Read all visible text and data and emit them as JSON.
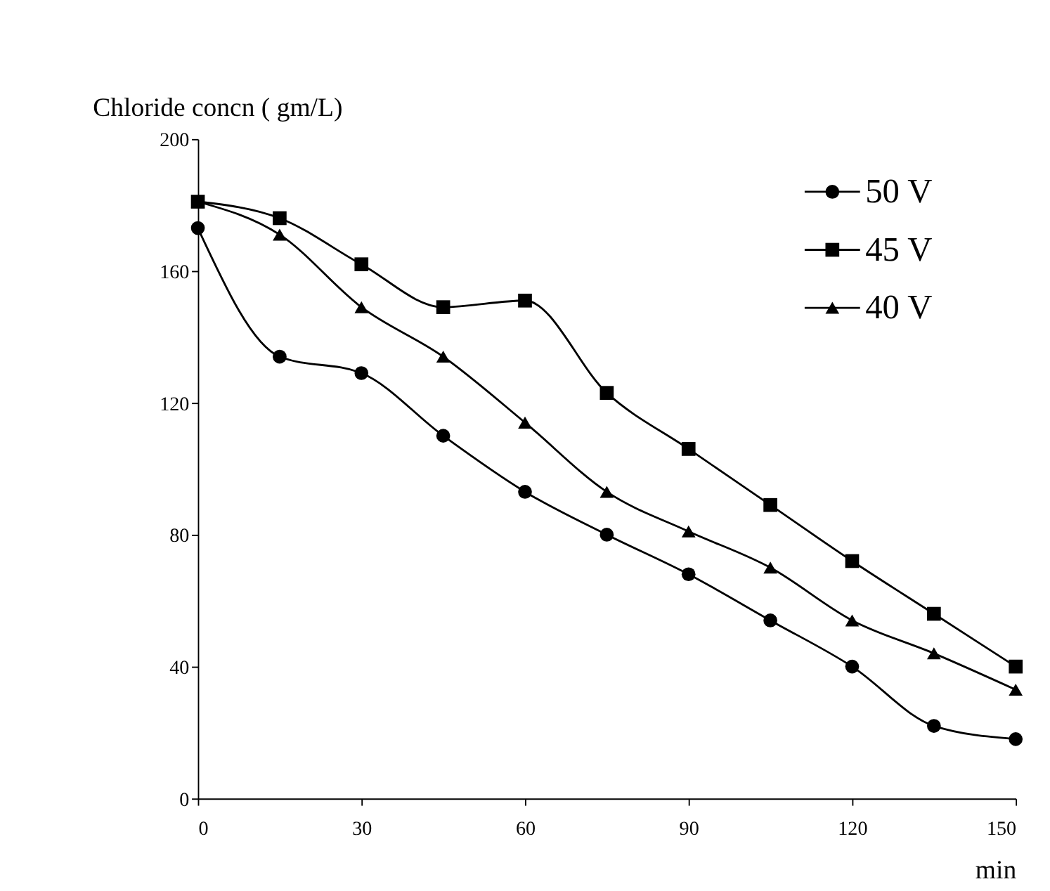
{
  "chart_data": {
    "type": "line",
    "xlabel": "min",
    "ylabel": "Chloride  concn ( gm/L)",
    "x": [
      0,
      15,
      30,
      45,
      60,
      75,
      90,
      105,
      120,
      135,
      150
    ],
    "series": [
      {
        "name": "50 V",
        "color": "#000000",
        "marker": "circle",
        "values": [
          173,
          134,
          129,
          110,
          93,
          80,
          68,
          54,
          40,
          22,
          18
        ]
      },
      {
        "name": "45 V",
        "color": "#000000",
        "marker": "square",
        "values": [
          181,
          176,
          162,
          149,
          151,
          123,
          106,
          89,
          72,
          56,
          40
        ]
      },
      {
        "name": "40 V",
        "color": "#000000",
        "marker": "triangle",
        "values": [
          181,
          171,
          149,
          134,
          114,
          93,
          81,
          70,
          54,
          44,
          33
        ]
      }
    ],
    "xlim": [
      0,
      150
    ],
    "xticks": [
      0,
      30,
      60,
      90,
      120,
      150
    ],
    "ylim": [
      0,
      200
    ],
    "yticks": [
      0,
      40,
      80,
      120,
      160,
      200
    ],
    "grid": false,
    "legend": "top right",
    "line_style": "solid"
  }
}
